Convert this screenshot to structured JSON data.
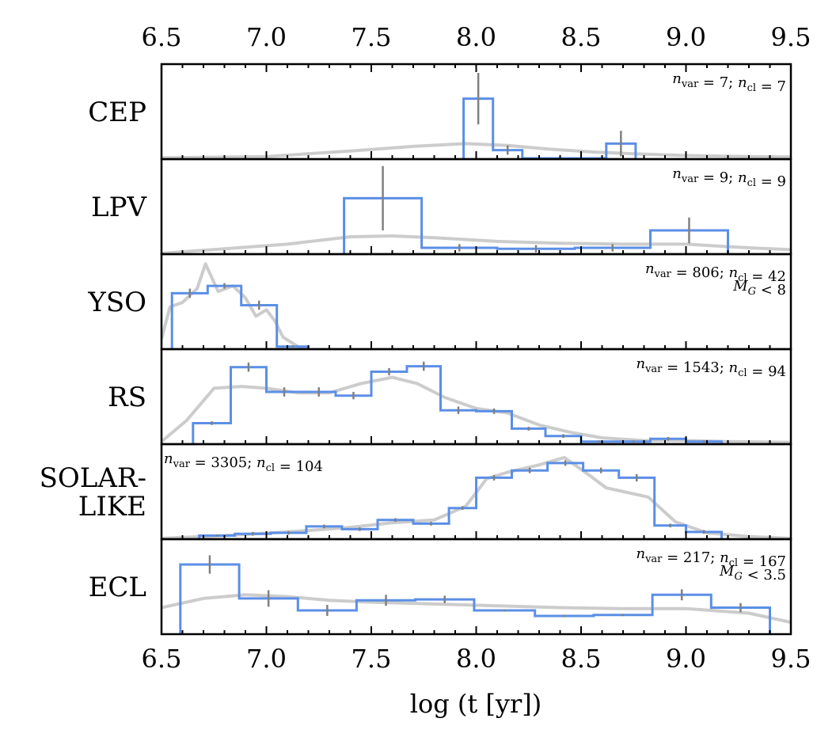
{
  "chart_data": {
    "type": "histogram",
    "xlabel": "log (t [yr])",
    "xlim": [
      6.5,
      9.5
    ],
    "xticks": [
      "6.5",
      "7.0",
      "7.5",
      "8.0",
      "8.5",
      "9.0",
      "9.5"
    ],
    "colors": {
      "histogram": "#5b8fe6",
      "kde": "#cccccc",
      "errorbar": "#808080"
    },
    "panels": [
      {
        "label": [
          "CEP"
        ],
        "annotation": [
          "n_var = 7; n_cl = 7"
        ],
        "annotation_position": "top-right",
        "bin_edges": [
          7.94,
          8.08,
          8.22,
          8.36,
          8.5,
          8.62,
          8.76
        ],
        "values": [
          0.65,
          0.09,
          0,
          0,
          0,
          0.16
        ],
        "errors": [
          0.28,
          0.05,
          0,
          0,
          0,
          0.14
        ],
        "kde": [
          [
            6.5,
            0.005
          ],
          [
            7.0,
            0.02
          ],
          [
            7.4,
            0.08
          ],
          [
            7.7,
            0.13
          ],
          [
            7.95,
            0.16
          ],
          [
            8.15,
            0.14
          ],
          [
            8.35,
            0.1
          ],
          [
            8.55,
            0.07
          ],
          [
            8.75,
            0.05
          ],
          [
            9.0,
            0.03
          ],
          [
            9.3,
            0.02
          ],
          [
            9.5,
            0.015
          ]
        ]
      },
      {
        "label": [
          "LPV"
        ],
        "annotation": [
          "n_var = 9; n_cl = 9"
        ],
        "annotation_position": "top-right",
        "bin_edges": [
          7.37,
          7.74,
          8.1,
          8.47,
          8.83,
          9.2
        ],
        "values": [
          0.6,
          0.06,
          0.05,
          0.06,
          0.25
        ],
        "errors": [
          0.35,
          0.04,
          0.04,
          0.04,
          0.14
        ],
        "kde": [
          [
            6.5,
            0.0
          ],
          [
            6.8,
            0.05
          ],
          [
            7.1,
            0.1
          ],
          [
            7.4,
            0.18
          ],
          [
            7.6,
            0.19
          ],
          [
            7.8,
            0.17
          ],
          [
            8.1,
            0.13
          ],
          [
            8.4,
            0.11
          ],
          [
            8.7,
            0.1
          ],
          [
            9.0,
            0.1
          ],
          [
            9.3,
            0.06
          ],
          [
            9.5,
            0.04
          ]
        ]
      },
      {
        "label": [
          "YSO"
        ],
        "annotation": [
          "n_var = 806; n_cl = 42",
          "M_G < 8"
        ],
        "annotation_position": "top-right",
        "bin_edges": [
          6.55,
          6.72,
          6.88,
          7.05,
          7.2
        ],
        "values": [
          0.6,
          0.68,
          0.47,
          0.02
        ],
        "errors": [
          0.05,
          0.03,
          0.05,
          0.0
        ],
        "kde": [
          [
            6.5,
            0.1
          ],
          [
            6.54,
            0.45
          ],
          [
            6.6,
            0.5
          ],
          [
            6.67,
            0.65
          ],
          [
            6.71,
            0.92
          ],
          [
            6.77,
            0.62
          ],
          [
            6.84,
            0.68
          ],
          [
            6.9,
            0.55
          ],
          [
            6.95,
            0.35
          ],
          [
            7.0,
            0.42
          ],
          [
            7.04,
            0.3
          ],
          [
            7.08,
            0.12
          ],
          [
            7.15,
            0.02
          ],
          [
            7.2,
            0.0
          ]
        ]
      },
      {
        "label": [
          "RS"
        ],
        "annotation": [
          "n_var = 1543; n_cl = 94"
        ],
        "annotation_position": "top-right",
        "bin_edges": [
          6.65,
          6.83,
          7.0,
          7.17,
          7.33,
          7.5,
          7.67,
          7.83,
          8.0,
          8.17,
          8.33,
          8.5,
          8.67,
          8.83,
          9.0,
          9.17
        ],
        "values": [
          0.22,
          0.83,
          0.56,
          0.56,
          0.52,
          0.78,
          0.84,
          0.36,
          0.35,
          0.16,
          0.08,
          0.02,
          0.02,
          0.05,
          0.02
        ],
        "errors": [
          0.02,
          0.05,
          0.05,
          0.05,
          0.04,
          0.04,
          0.05,
          0.04,
          0.03,
          0.02,
          0.02,
          0.01,
          0.0,
          0.02,
          0.01
        ],
        "kde": [
          [
            6.5,
            0.02
          ],
          [
            6.62,
            0.25
          ],
          [
            6.75,
            0.6
          ],
          [
            6.88,
            0.62
          ],
          [
            7.0,
            0.6
          ],
          [
            7.15,
            0.55
          ],
          [
            7.3,
            0.55
          ],
          [
            7.45,
            0.65
          ],
          [
            7.6,
            0.72
          ],
          [
            7.72,
            0.65
          ],
          [
            7.85,
            0.5
          ],
          [
            8.0,
            0.38
          ],
          [
            8.15,
            0.33
          ],
          [
            8.3,
            0.2
          ],
          [
            8.45,
            0.12
          ],
          [
            8.6,
            0.06
          ],
          [
            8.8,
            0.03
          ],
          [
            9.0,
            0.03
          ],
          [
            9.2,
            0.02
          ],
          [
            9.5,
            0.01
          ]
        ]
      },
      {
        "label": [
          "SOLAR-",
          "LIKE"
        ],
        "annotation": [
          "n_var = 3305; n_cl = 104"
        ],
        "annotation_position": "top-left",
        "bin_edges": [
          6.68,
          6.85,
          7.02,
          7.19,
          7.36,
          7.53,
          7.7,
          7.87,
          8.0,
          8.17,
          8.34,
          8.51,
          8.68,
          8.85,
          9.0,
          9.17
        ],
        "values": [
          0.03,
          0.05,
          0.06,
          0.13,
          0.1,
          0.2,
          0.16,
          0.33,
          0.66,
          0.74,
          0.82,
          0.74,
          0.66,
          0.14,
          0.07
        ],
        "errors": [
          0.01,
          0.02,
          0.02,
          0.02,
          0.02,
          0.02,
          0.02,
          0.02,
          0.03,
          0.03,
          0.03,
          0.03,
          0.04,
          0.02,
          0.02
        ],
        "kde": [
          [
            6.5,
            0.0
          ],
          [
            6.8,
            0.03
          ],
          [
            7.1,
            0.07
          ],
          [
            7.4,
            0.12
          ],
          [
            7.6,
            0.17
          ],
          [
            7.8,
            0.2
          ],
          [
            7.95,
            0.35
          ],
          [
            8.05,
            0.65
          ],
          [
            8.15,
            0.72
          ],
          [
            8.3,
            0.8
          ],
          [
            8.42,
            0.88
          ],
          [
            8.52,
            0.72
          ],
          [
            8.62,
            0.55
          ],
          [
            8.72,
            0.5
          ],
          [
            8.82,
            0.45
          ],
          [
            8.95,
            0.18
          ],
          [
            9.1,
            0.06
          ],
          [
            9.3,
            0.02
          ],
          [
            9.5,
            0.0
          ]
        ]
      },
      {
        "label": [
          "ECL"
        ],
        "annotation": [
          "n_var = 217; n_cl = 167",
          "M_G < 3.5"
        ],
        "annotation_position": "top-right",
        "bin_edges": [
          6.59,
          6.87,
          7.15,
          7.43,
          7.71,
          7.99,
          8.28,
          8.56,
          8.84,
          9.12,
          9.4
        ],
        "values": [
          0.75,
          0.38,
          0.25,
          0.36,
          0.37,
          0.25,
          0.19,
          0.2,
          0.42,
          0.28
        ],
        "errors": [
          0.1,
          0.09,
          0.06,
          0.06,
          0.04,
          0.0,
          0.0,
          0.0,
          0.06,
          0.05
        ],
        "kde": [
          [
            6.5,
            0.28
          ],
          [
            6.7,
            0.38
          ],
          [
            6.9,
            0.42
          ],
          [
            7.1,
            0.4
          ],
          [
            7.3,
            0.36
          ],
          [
            7.5,
            0.34
          ],
          [
            7.8,
            0.32
          ],
          [
            8.1,
            0.3
          ],
          [
            8.4,
            0.28
          ],
          [
            8.7,
            0.27
          ],
          [
            9.0,
            0.27
          ],
          [
            9.3,
            0.22
          ],
          [
            9.5,
            0.12
          ]
        ]
      }
    ]
  }
}
